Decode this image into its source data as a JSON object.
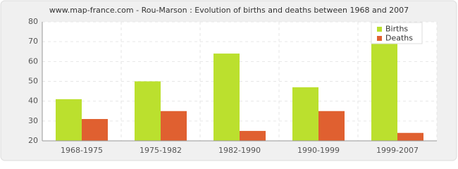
{
  "chart_data": {
    "type": "bar",
    "title": "www.map-france.com - Rou-Marson : Evolution of births and deaths between 1968 and 2007",
    "categories": [
      "1968-1975",
      "1975-1982",
      "1982-1990",
      "1990-1999",
      "1999-2007"
    ],
    "series": [
      {
        "name": "Births",
        "color": "#bbe02e",
        "values": [
          41,
          50,
          64,
          47,
          78
        ]
      },
      {
        "name": "Deaths",
        "color": "#e06030",
        "values": [
          31,
          35,
          25,
          35,
          24
        ]
      }
    ],
    "ylim": [
      20,
      80
    ],
    "yticks": [
      20,
      30,
      40,
      50,
      60,
      70,
      80
    ],
    "grid": true,
    "legend": "top-right"
  }
}
